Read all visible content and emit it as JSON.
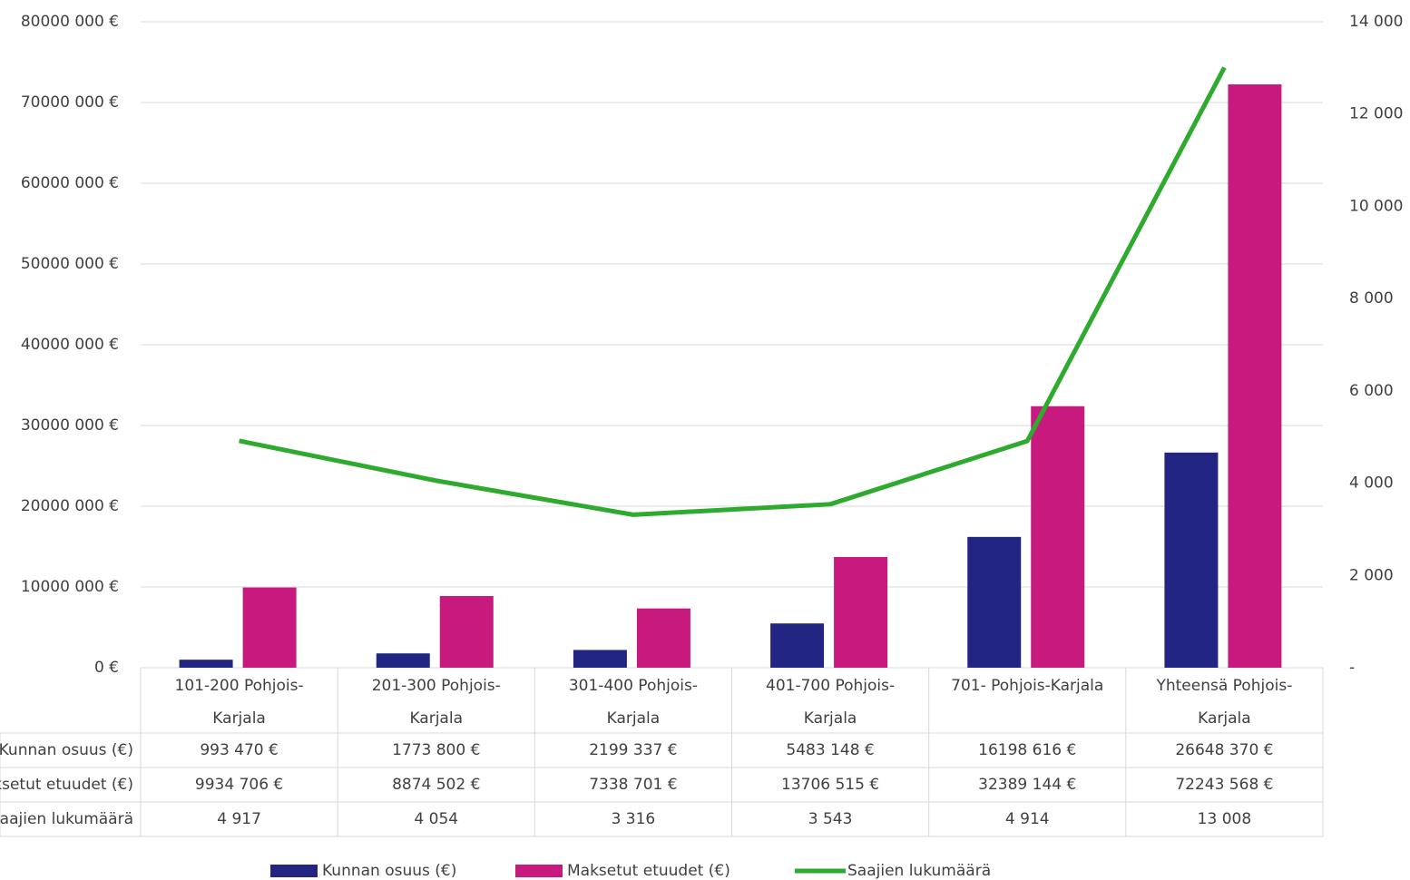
{
  "chart_data": {
    "type": "bar",
    "categories": [
      "101-200 Pohjois-Karjala",
      "201-300 Pohjois-Karjala",
      "301-400 Pohjois-Karjala",
      "401-700 Pohjois-Karjala",
      "701- Pohjois-Karjala",
      "Yhteensä Pohjois-Karjala"
    ],
    "series": [
      {
        "name": "Kunnan osuus (€)",
        "color": "#232583",
        "type": "bar",
        "values": [
          993470,
          1773800,
          2199337,
          5483148,
          16198616,
          26648370
        ],
        "value_labels": [
          "993 470 €",
          "1773 800 €",
          "2199 337 €",
          "5483 148 €",
          "16198 616 €",
          "26648 370 €"
        ]
      },
      {
        "name": "Maksetut etuudet (€)",
        "color": "#c8197f",
        "type": "bar",
        "values": [
          9934706,
          8874502,
          7338701,
          13706515,
          32389144,
          72243568
        ],
        "value_labels": [
          "9934 706 €",
          "8874 502 €",
          "7338 701 €",
          "13706 515 €",
          "32389 144 €",
          "72243 568 €"
        ]
      },
      {
        "name": "Saajien lukumäärä",
        "color": "#2eaa2e",
        "type": "line",
        "axis": "y2",
        "values": [
          4917,
          4054,
          3316,
          3543,
          4914,
          13008
        ],
        "value_labels": [
          "4 917",
          "4 054",
          "3 316",
          "3 543",
          "4 914",
          "13 008"
        ]
      }
    ],
    "ylim": [
      0,
      80000000
    ],
    "yticks": [
      {
        "value": 0,
        "label": "0 €"
      },
      {
        "value": 10000000,
        "label": "10000 000 €"
      },
      {
        "value": 20000000,
        "label": "20000 000 €"
      },
      {
        "value": 30000000,
        "label": "30000 000 €"
      },
      {
        "value": 40000000,
        "label": "40000 000 €"
      },
      {
        "value": 50000000,
        "label": "50000 000 €"
      },
      {
        "value": 60000000,
        "label": "60000 000 €"
      },
      {
        "value": 70000000,
        "label": "70000 000 €"
      },
      {
        "value": 80000000,
        "label": "80000 000 €"
      }
    ],
    "y2lim": [
      0,
      14000
    ],
    "y2ticks": [
      {
        "value": 0,
        "label": "-"
      },
      {
        "value": 2000,
        "label": "2 000"
      },
      {
        "value": 4000,
        "label": "4 000"
      },
      {
        "value": 6000,
        "label": "6 000"
      },
      {
        "value": 8000,
        "label": "8 000"
      },
      {
        "value": 10000,
        "label": "10 000"
      },
      {
        "value": 12000,
        "label": "12 000"
      },
      {
        "value": 14000,
        "label": "14 000"
      }
    ],
    "grid": true
  }
}
